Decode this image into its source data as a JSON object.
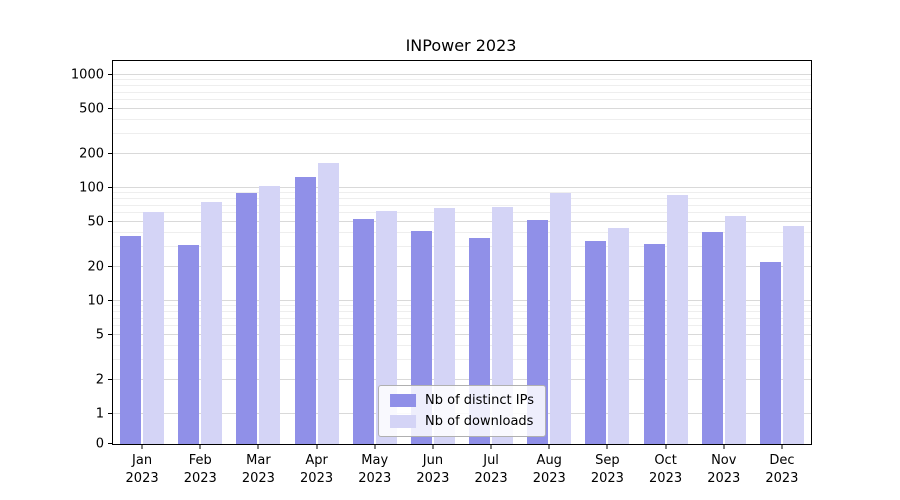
{
  "title": "INPower 2023",
  "colors": {
    "background": "#ffffff",
    "axis": "#000000",
    "grid_major": "#d9d9d9",
    "grid_minor": "#eeeeee",
    "series_ips": "#9090e8",
    "series_downloads": "#d4d4f6"
  },
  "chart_data": {
    "type": "bar",
    "title": "INPower 2023",
    "y_scale": "symlog",
    "grid": true,
    "xlabel": "",
    "ylabel": "",
    "ylim": [
      0,
      1330
    ],
    "y_ticks": [
      0,
      1,
      2,
      5,
      10,
      20,
      50,
      100,
      200,
      500,
      1000
    ],
    "categories": [
      "Jan 2023",
      "Feb 2023",
      "Mar 2023",
      "Apr 2023",
      "May 2023",
      "Jun 2023",
      "Jul 2023",
      "Aug 2023",
      "Sep 2023",
      "Oct 2023",
      "Nov 2023",
      "Dec 2023"
    ],
    "series": [
      {
        "name": "Nb of distinct IPs",
        "color": "#9090e8",
        "values": [
          38,
          31,
          90,
          125,
          53,
          42,
          36,
          52,
          34,
          32,
          41,
          22
        ]
      },
      {
        "name": "Nb of downloads",
        "color": "#d4d4f6",
        "values": [
          61,
          75,
          104,
          165,
          63,
          66,
          68,
          90,
          44,
          87,
          56,
          46
        ]
      }
    ],
    "legend": {
      "position": "lower center",
      "entries": [
        "Nb of distinct IPs",
        "Nb of downloads"
      ]
    }
  }
}
